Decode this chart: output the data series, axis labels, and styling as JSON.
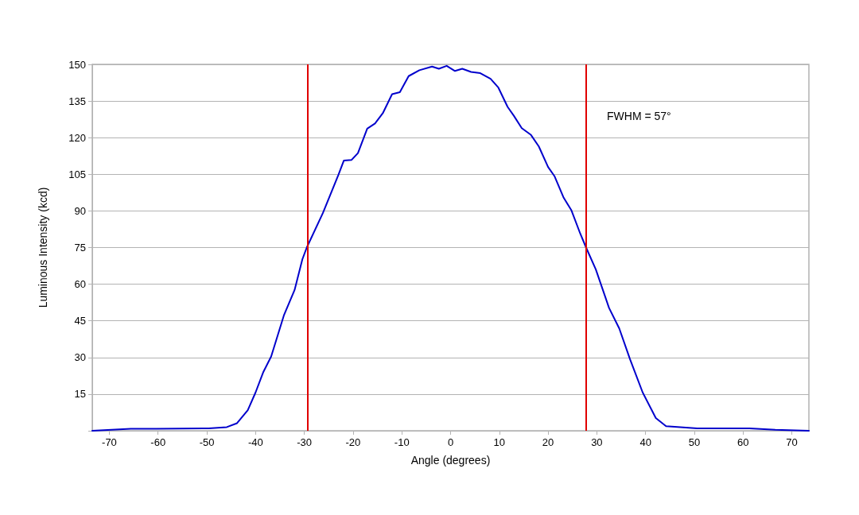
{
  "chart_data": {
    "type": "line",
    "xlabel": "Angle (degrees)",
    "ylabel": "Luminous Intensity (kcd)",
    "series": [
      {
        "color": "#0000cc",
        "x": [
          -73.5,
          -65.6,
          -60.3,
          -49.6,
          -45.9,
          -43.8,
          -41.6,
          -40.0,
          -38.4,
          -36.8,
          -34.2,
          -32.0,
          -30.4,
          -29.5,
          -26.2,
          -23.0,
          -21.9,
          -20.3,
          -19.0,
          -17.1,
          -15.5,
          -13.9,
          -12.0,
          -10.4,
          -8.6,
          -6.4,
          -3.8,
          -2.4,
          -0.8,
          0.9,
          2.4,
          4.2,
          6.1,
          8.2,
          9.8,
          11.7,
          13.0,
          14.6,
          16.5,
          18.1,
          20.0,
          21.3,
          23.2,
          24.8,
          26.6,
          27.8,
          29.8,
          32.5,
          34.6,
          36.8,
          39.4,
          42.1,
          44.2,
          50.6,
          61.3,
          66.6,
          73.5
        ],
        "values": [
          0,
          0.8,
          0.8,
          1.0,
          1.5,
          3.1,
          8.4,
          15.7,
          24.1,
          30.4,
          47.2,
          57.6,
          70.2,
          75,
          89.1,
          104.8,
          110.6,
          110.9,
          113.7,
          123.7,
          125.8,
          130,
          137.8,
          138.6,
          145.2,
          147.6,
          149.1,
          148.2,
          149.4,
          147.3,
          148.2,
          146.9,
          146.4,
          144.1,
          140.5,
          132.6,
          128.9,
          123.9,
          121.1,
          116.4,
          108.0,
          104.3,
          95.4,
          90.2,
          80.7,
          75,
          66,
          50.3,
          41.9,
          29.3,
          15.7,
          5.2,
          1.9,
          1.0,
          1.0,
          0.4,
          0
        ]
      }
    ],
    "xlim": [
      -73.5,
      73.5
    ],
    "xticks": [
      -70,
      -60,
      -50,
      -40,
      -30,
      -20,
      -10,
      0,
      10,
      20,
      30,
      40,
      50,
      60,
      70
    ],
    "ylim": [
      0,
      150
    ],
    "yticks": [
      {
        "value": 0,
        "label": null
      },
      15,
      30,
      45,
      60,
      75,
      90,
      105,
      120,
      135,
      150
    ],
    "grid": "y",
    "legend": false,
    "marker": "none",
    "line_style": "solid",
    "ref_lines": [
      {
        "axis": "x",
        "value": -29.4,
        "color": "#e00000"
      },
      {
        "axis": "x",
        "value": 27.7,
        "color": "#e00000"
      }
    ],
    "annotations": [
      "FWHM = 57°"
    ]
  }
}
